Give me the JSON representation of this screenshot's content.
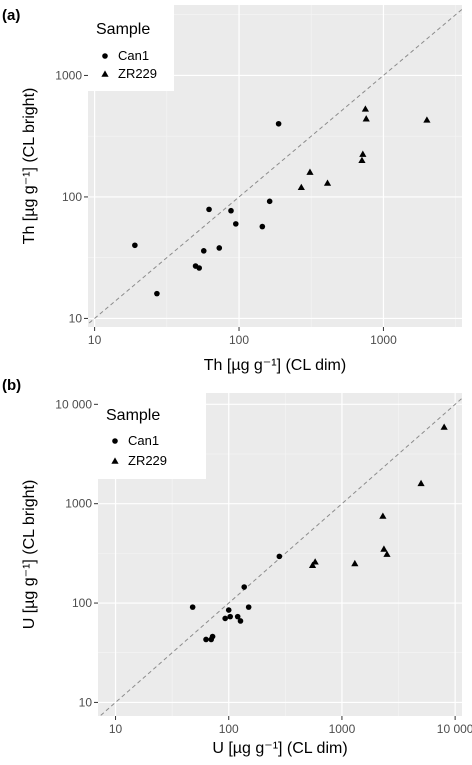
{
  "chart_data": [
    {
      "type": "scatter",
      "panel": "(a)",
      "xlabel": "Th [µg g⁻¹] (CL dim)",
      "ylabel": "Th [µg g⁻¹] (CL bright)",
      "xscale": "log",
      "yscale": "log",
      "xlim": [
        9,
        3500
      ],
      "ylim": [
        8.5,
        3800
      ],
      "xticks": [
        10,
        100,
        1000
      ],
      "xtick_labels": [
        "10",
        "100",
        "1000"
      ],
      "yticks": [
        10,
        100,
        1000
      ],
      "ytick_labels": [
        "10",
        "100",
        "1000"
      ],
      "grid": true,
      "reference_line": "1:1",
      "legend": {
        "title": "Sample",
        "placement": "top-left",
        "entries": [
          "Can1",
          "ZR229"
        ]
      },
      "series": [
        {
          "name": "Can1",
          "marker": "circle",
          "points": [
            [
              19,
              40
            ],
            [
              27,
              16
            ],
            [
              50,
              27
            ],
            [
              53,
              26
            ],
            [
              57,
              36
            ],
            [
              62,
              79
            ],
            [
              73,
              38
            ],
            [
              88,
              77
            ],
            [
              95,
              60
            ],
            [
              145,
              57
            ],
            [
              163,
              92
            ],
            [
              188,
              400
            ]
          ]
        },
        {
          "name": "ZR229",
          "marker": "triangle",
          "points": [
            [
              270,
              120
            ],
            [
              310,
              160
            ],
            [
              410,
              130
            ],
            [
              710,
              200
            ],
            [
              720,
              225
            ],
            [
              750,
              530
            ],
            [
              760,
              440
            ],
            [
              2000,
              430
            ]
          ]
        }
      ]
    },
    {
      "type": "scatter",
      "panel": "(b)",
      "xlabel": "U [µg g⁻¹] (CL dim)",
      "ylabel": "U [µg g⁻¹] (CL bright)",
      "xscale": "log",
      "yscale": "log",
      "xlim": [
        7,
        11500
      ],
      "ylim": [
        7.3,
        13000
      ],
      "xticks": [
        10,
        100,
        1000,
        10000
      ],
      "xtick_labels": [
        "10",
        "100",
        "1000",
        "10 000"
      ],
      "yticks": [
        10,
        100,
        1000,
        10000
      ],
      "ytick_labels": [
        "10",
        "100",
        "1000",
        "10 000"
      ],
      "grid": true,
      "reference_line": "1:1",
      "legend": {
        "title": "Sample",
        "placement": "top-left",
        "entries": [
          "Can1",
          "ZR229"
        ]
      },
      "series": [
        {
          "name": "Can1",
          "marker": "circle",
          "points": [
            [
              48,
              91
            ],
            [
              63,
              43
            ],
            [
              70,
              43
            ],
            [
              72,
              46
            ],
            [
              93,
              70
            ],
            [
              100,
              85
            ],
            [
              103,
              73
            ],
            [
              120,
              73
            ],
            [
              127,
              66
            ],
            [
              137,
              145
            ],
            [
              150,
              91
            ],
            [
              280,
              295
            ]
          ]
        },
        {
          "name": "ZR229",
          "marker": "triangle",
          "points": [
            [
              550,
              240
            ],
            [
              580,
              260
            ],
            [
              1300,
              250
            ],
            [
              2300,
              750
            ],
            [
              2350,
              350
            ],
            [
              2500,
              310
            ],
            [
              5000,
              1600
            ],
            [
              8000,
              5900
            ]
          ]
        }
      ]
    }
  ]
}
